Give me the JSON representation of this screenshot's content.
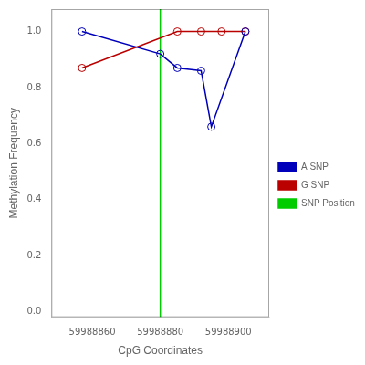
{
  "chart_data": {
    "type": "line",
    "xlabel": "CpG Coordinates",
    "ylabel": "Methylation Frequency",
    "series": [
      {
        "name": "A SNP",
        "color": "#0000BB",
        "marker": "circle",
        "line_style": "solid",
        "x": [
          59988857,
          59988880,
          59988885,
          59988892,
          59988895,
          59988905
        ],
        "values": [
          1.0,
          0.92,
          0.87,
          0.86,
          0.66,
          1.0
        ]
      },
      {
        "name": "G SNP",
        "color": "#BB0000",
        "marker": "circle",
        "line_style": "solid",
        "x": [
          59988857,
          59988885,
          59988892,
          59988898,
          59988905
        ],
        "values": [
          0.87,
          1.0,
          1.0,
          1.0,
          1.0
        ]
      },
      {
        "name": "SNP Position",
        "color": "#00CC00",
        "type": "vline",
        "line_style": "solid",
        "x": 59988880
      }
    ],
    "xlim": [
      59988848,
      59988912
    ],
    "xticks": [
      59988860,
      59988880,
      59988900
    ],
    "ylim": [
      -0.02,
      1.08
    ],
    "yticks": [
      {
        "value": 0,
        "label": "0.0"
      },
      0.2,
      0.4,
      0.6,
      0.8,
      {
        "value": 1,
        "label": "1.0"
      }
    ],
    "grid": false,
    "legend": "right"
  }
}
